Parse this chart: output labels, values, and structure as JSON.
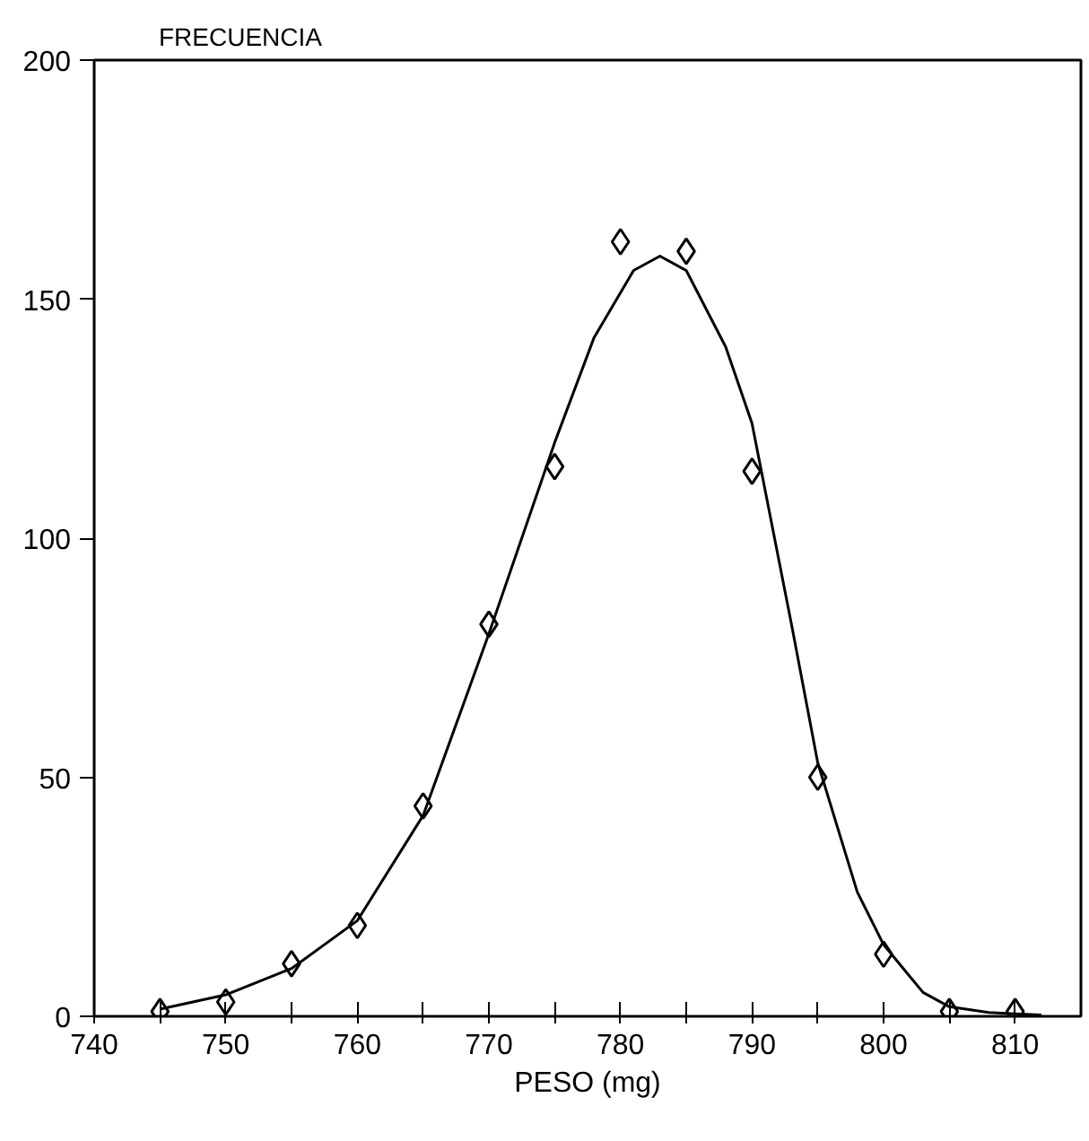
{
  "chart_data": {
    "type": "scatter",
    "xlabel": "PESO (mg)",
    "ylabel": "FRECUENCIA",
    "xlim": [
      740,
      815
    ],
    "ylim": [
      0,
      200
    ],
    "xticks": [
      740,
      {
        "value": 745,
        "label": null
      },
      750,
      {
        "value": 755,
        "label": null
      },
      760,
      {
        "value": 765,
        "label": null
      },
      770,
      {
        "value": 775,
        "label": null
      },
      780,
      {
        "value": 785,
        "label": null
      },
      790,
      {
        "value": 795,
        "label": null
      },
      800,
      {
        "value": 805,
        "label": null
      },
      810
    ],
    "yticks": [
      0,
      50,
      100,
      150,
      200
    ],
    "grid": false,
    "series": [
      {
        "color": "#000000",
        "marker": "diamond",
        "x": [
          745,
          750,
          755,
          760,
          765,
          770,
          775,
          780,
          785,
          790,
          795,
          800,
          805,
          810
        ],
        "values": [
          1,
          3,
          11,
          19,
          44,
          82,
          115,
          162,
          160,
          114,
          50,
          13,
          1,
          1
        ]
      },
      {
        "type": "line",
        "color": "#000000",
        "line_style": "solid",
        "marker": "none",
        "x": [
          745,
          750,
          755,
          760,
          765,
          770,
          775,
          778,
          781,
          783,
          785,
          788,
          790,
          793,
          795,
          798,
          800,
          803,
          805,
          808,
          810,
          812
        ],
        "values": [
          1.5,
          4.5,
          10,
          20,
          42,
          80,
          120,
          142,
          156,
          159,
          156,
          140,
          124,
          82,
          53,
          26,
          15,
          5,
          2,
          0.8,
          0.5,
          0.3
        ]
      }
    ]
  }
}
